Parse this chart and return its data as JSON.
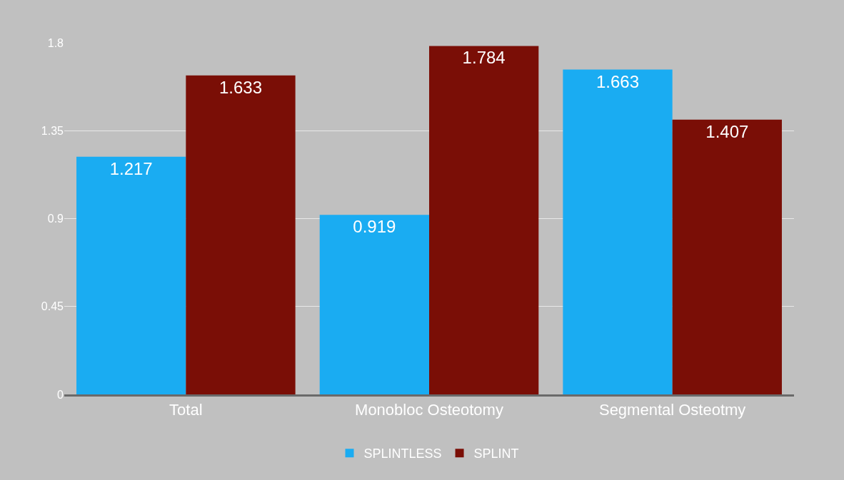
{
  "chart_data": {
    "type": "bar",
    "categories": [
      "Total",
      "Monobloc Osteotomy",
      "Segmental Osteotmy"
    ],
    "series": [
      {
        "name": "SPLINTLESS",
        "color": "#1aacf2",
        "values": [
          1.217,
          0.919,
          1.663
        ]
      },
      {
        "name": "SPLINT",
        "color": "#7a0e06",
        "values": [
          1.633,
          1.784,
          1.407
        ]
      }
    ],
    "ylim": [
      0,
      1.8
    ],
    "yticks": [
      0,
      0.45,
      0.9,
      1.35,
      1.8
    ],
    "grid": "y",
    "legend": "bottom",
    "data_labels": true
  }
}
